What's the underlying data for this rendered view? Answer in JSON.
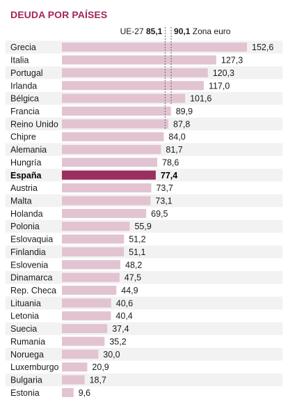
{
  "title": "DEUDA POR PAÍSES",
  "chart_data": {
    "type": "bar",
    "orientation": "horizontal",
    "title": "DEUDA POR PAÍSES",
    "categories": [
      "Grecia",
      "Italia",
      "Portugal",
      "Irlanda",
      "Bélgica",
      "Francia",
      "Reino Unido",
      "Chipre",
      "Alemania",
      "Hungría",
      "España",
      "Austria",
      "Malta",
      "Holanda",
      "Polonia",
      "Eslovaquia",
      "Finlandia",
      "Eslovenia",
      "Dinamarca",
      "Rep. Checa",
      "Lituania",
      "Letonia",
      "Suecia",
      "Rumania",
      "Noruega",
      "Luxemburgo",
      "Bulgaria",
      "Estonia"
    ],
    "values": [
      152.6,
      127.3,
      120.3,
      117.0,
      101.6,
      89.9,
      87.8,
      84.0,
      81.7,
      78.6,
      77.4,
      73.7,
      73.1,
      69.5,
      55.9,
      51.2,
      51.1,
      48.2,
      47.5,
      44.9,
      40.6,
      40.4,
      37.4,
      35.2,
      30.0,
      20.9,
      18.7,
      9.6
    ],
    "value_labels": [
      "152,6",
      "127,3",
      "120,3",
      "117,0",
      "101,6",
      "89,9",
      "87,8",
      "84,0",
      "81,7",
      "78,6",
      "77,4",
      "73,7",
      "73,1",
      "69,5",
      "55,9",
      "51,2",
      "51,1",
      "48,2",
      "47,5",
      "44,9",
      "40,6",
      "40,4",
      "37,4",
      "35,2",
      "30,0",
      "20,9",
      "18,7",
      "9,6"
    ],
    "highlight": "España",
    "colors": {
      "bar": "#e2c3d1",
      "highlight_bar": "#99305f",
      "title": "#a3245a",
      "row_alt": "#f2f2f2",
      "ref_line": "#555555"
    },
    "reference_lines": [
      {
        "label": "UE-27",
        "value": 85.1,
        "value_label": "85,1"
      },
      {
        "label": "Zona euro",
        "value": 90.1,
        "value_label": "90,1"
      }
    ],
    "xlim": [
      0,
      152.6
    ],
    "grid": false,
    "legend": "none"
  }
}
